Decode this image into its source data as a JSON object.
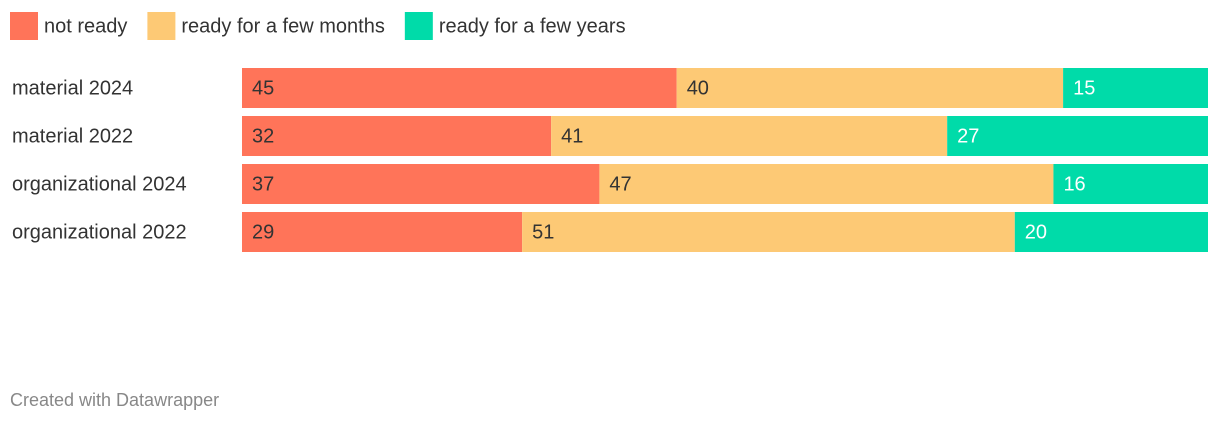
{
  "chart_data": {
    "type": "stacked-bar-horizontal",
    "categories": [
      "material 2024",
      "material 2022",
      "organizational 2024",
      "organizational 2022"
    ],
    "series": [
      {
        "name": "not ready",
        "color": "#ff7459",
        "values": [
          45,
          32,
          37,
          29
        ]
      },
      {
        "name": "ready for a few months",
        "color": "#fdc975",
        "values": [
          40,
          41,
          47,
          51
        ]
      },
      {
        "name": "ready for a few years",
        "color": "#00dba9",
        "values": [
          15,
          27,
          16,
          20
        ]
      }
    ],
    "xlim": [
      0,
      100
    ],
    "legend": "top-left",
    "footer": "Created with Datawrapper"
  }
}
